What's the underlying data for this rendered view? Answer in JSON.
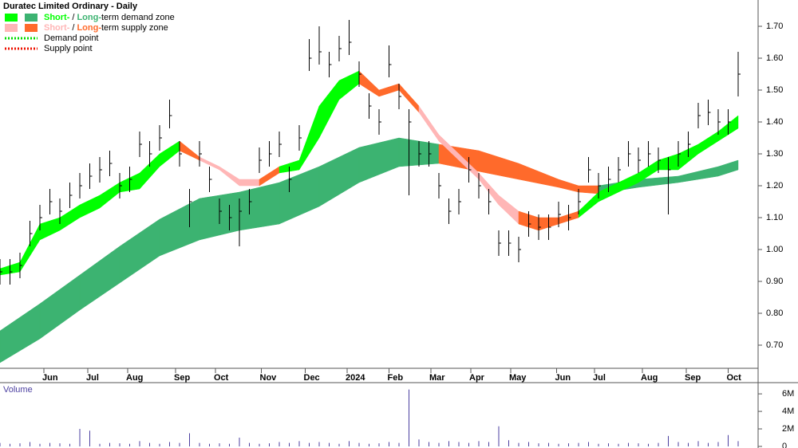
{
  "chart_data": [
    {
      "type": "ohlc",
      "title": "Duratec Limited Ordinary - Daily",
      "x": [
        0,
        5,
        10,
        15,
        20,
        25,
        30,
        35,
        40,
        45,
        50,
        55,
        60,
        65,
        70,
        75,
        80,
        85,
        90,
        95,
        100,
        105,
        110,
        115,
        120,
        125,
        130,
        135,
        140,
        145,
        150,
        155,
        160,
        165,
        170,
        175,
        180,
        185,
        190,
        195,
        200,
        205,
        210,
        215,
        220,
        225,
        230,
        235,
        240,
        245,
        250,
        255,
        260,
        265,
        270,
        275,
        280,
        285,
        290,
        295,
        300,
        305,
        310,
        315,
        320,
        325,
        330,
        335,
        340,
        345,
        350,
        355,
        360,
        365,
        370
      ],
      "high": [
        0.97,
        0.97,
        0.99,
        1.09,
        1.14,
        1.19,
        1.16,
        1.21,
        1.24,
        1.27,
        1.29,
        1.31,
        1.24,
        1.26,
        1.37,
        1.34,
        1.39,
        1.47,
        1.34,
        1.19,
        1.34,
        1.26,
        1.16,
        1.14,
        1.16,
        1.19,
        1.32,
        1.34,
        1.37,
        1.26,
        1.39,
        1.66,
        1.7,
        1.62,
        1.67,
        1.72,
        1.59,
        1.49,
        1.44,
        1.64,
        1.52,
        1.44,
        1.34,
        1.34,
        1.24,
        1.16,
        1.19,
        1.29,
        1.24,
        1.19,
        1.06,
        1.06,
        1.04,
        1.12,
        1.11,
        1.11,
        1.15,
        1.14,
        1.19,
        1.29,
        1.24,
        1.26,
        1.29,
        1.34,
        1.32,
        1.34,
        1.32,
        1.29,
        1.34,
        1.37,
        1.46,
        1.47,
        1.44,
        1.44,
        1.62
      ],
      "low": [
        0.89,
        0.89,
        0.91,
        1.01,
        1.06,
        1.11,
        1.08,
        1.13,
        1.16,
        1.19,
        1.21,
        1.23,
        1.16,
        1.18,
        1.29,
        1.26,
        1.31,
        1.38,
        1.26,
        1.07,
        1.26,
        1.18,
        1.08,
        1.06,
        1.01,
        1.11,
        1.24,
        1.26,
        1.29,
        1.18,
        1.31,
        1.56,
        1.58,
        1.54,
        1.59,
        1.61,
        1.51,
        1.41,
        1.36,
        1.54,
        1.44,
        1.17,
        1.26,
        1.26,
        1.16,
        1.08,
        1.11,
        1.21,
        1.16,
        1.11,
        0.98,
        0.98,
        0.96,
        1.04,
        1.03,
        1.03,
        1.07,
        1.06,
        1.11,
        1.21,
        1.16,
        1.18,
        1.21,
        1.26,
        1.24,
        1.26,
        1.24,
        1.11,
        1.26,
        1.29,
        1.38,
        1.39,
        1.36,
        1.36,
        1.48
      ],
      "close": [
        0.93,
        0.93,
        0.95,
        1.05,
        1.1,
        1.15,
        1.12,
        1.17,
        1.2,
        1.23,
        1.25,
        1.27,
        1.2,
        1.22,
        1.33,
        1.3,
        1.35,
        1.42,
        1.3,
        1.15,
        1.3,
        1.22,
        1.12,
        1.1,
        1.12,
        1.15,
        1.28,
        1.3,
        1.33,
        1.22,
        1.35,
        1.6,
        1.62,
        1.58,
        1.63,
        1.65,
        1.55,
        1.45,
        1.4,
        1.58,
        1.48,
        1.4,
        1.3,
        1.3,
        1.2,
        1.12,
        1.15,
        1.25,
        1.2,
        1.15,
        1.02,
        1.02,
        1.0,
        1.08,
        1.07,
        1.07,
        1.11,
        1.1,
        1.15,
        1.25,
        1.2,
        1.22,
        1.25,
        1.3,
        1.28,
        1.3,
        1.28,
        1.25,
        1.3,
        1.33,
        1.42,
        1.43,
        1.4,
        1.4,
        1.55
      ],
      "color": "#000000",
      "long_term_zone": {
        "x": [
          0,
          20,
          40,
          60,
          80,
          100,
          120,
          140,
          160,
          180,
          200,
          220,
          240,
          260,
          280,
          290,
          300,
          320,
          340,
          360,
          370
        ],
        "upper": [
          0.745,
          0.83,
          0.92,
          1.01,
          1.095,
          1.16,
          1.18,
          1.21,
          1.26,
          1.32,
          1.35,
          1.33,
          1.31,
          1.27,
          1.22,
          1.2,
          1.2,
          1.22,
          1.23,
          1.26,
          1.28
        ],
        "lower": [
          0.645,
          0.72,
          0.81,
          0.895,
          0.98,
          1.03,
          1.06,
          1.08,
          1.135,
          1.21,
          1.26,
          1.27,
          1.245,
          1.22,
          1.195,
          1.18,
          1.175,
          1.195,
          1.21,
          1.23,
          1.25
        ],
        "colors": [
          "#3cb371",
          "#3cb371",
          "#3cb371",
          "#3cb371",
          "#3cb371",
          "#3cb371",
          "#3cb371",
          "#3cb371",
          "#3cb371",
          "#3cb371",
          "#3cb371",
          "#ff6a2b",
          "#ff6a2b",
          "#ff6a2b",
          "#ff6a2b",
          "#ff6a2b",
          "#3cb371",
          "#3cb371",
          "#3cb371",
          "#3cb371",
          "#3cb371"
        ]
      },
      "short_term_zone": {
        "x": [
          0,
          10,
          20,
          30,
          40,
          50,
          60,
          70,
          80,
          90,
          100,
          110,
          120,
          130,
          140,
          150,
          160,
          170,
          180,
          190,
          200,
          210,
          220,
          230,
          240,
          250,
          260,
          270,
          280,
          290,
          300,
          310,
          320,
          330,
          340,
          350,
          360,
          370
        ],
        "upper": [
          0.94,
          0.96,
          1.08,
          1.1,
          1.14,
          1.17,
          1.21,
          1.24,
          1.3,
          1.34,
          1.29,
          1.26,
          1.22,
          1.22,
          1.26,
          1.28,
          1.45,
          1.53,
          1.56,
          1.5,
          1.52,
          1.45,
          1.36,
          1.3,
          1.24,
          1.17,
          1.12,
          1.1,
          1.1,
          1.12,
          1.18,
          1.21,
          1.24,
          1.28,
          1.3,
          1.33,
          1.37,
          1.42
        ],
        "lower": [
          0.92,
          0.93,
          1.03,
          1.06,
          1.1,
          1.13,
          1.18,
          1.19,
          1.26,
          1.31,
          1.28,
          1.25,
          1.2,
          1.2,
          1.24,
          1.25,
          1.35,
          1.47,
          1.52,
          1.48,
          1.5,
          1.43,
          1.34,
          1.28,
          1.22,
          1.14,
          1.08,
          1.06,
          1.08,
          1.1,
          1.15,
          1.18,
          1.21,
          1.25,
          1.25,
          1.3,
          1.34,
          1.38
        ],
        "colors": [
          "#00ff00",
          "#00ff00",
          "#00ff00",
          "#00ff00",
          "#00ff00",
          "#00ff00",
          "#00ff00",
          "#00ff00",
          "#00ff00",
          "#ff6a2b",
          "#ffb6b6",
          "#ffb6b6",
          "#ffb6b6",
          "#ff6a2b",
          "#00ff00",
          "#00ff00",
          "#00ff00",
          "#00ff00",
          "#ff6a2b",
          "#ff6a2b",
          "#ff6a2b",
          "#ffb6b6",
          "#ffb6b6",
          "#ffb6b6",
          "#ffb6b6",
          "#ffb6b6",
          "#ff6a2b",
          "#ff6a2b",
          "#ff6a2b",
          "#00ff00",
          "#00ff00",
          "#00ff00",
          "#00ff00",
          "#00ff00",
          "#00ff00",
          "#00ff00",
          "#00ff00",
          "#00ff00"
        ]
      },
      "legend": [
        {
          "short": "Short-",
          "sep": "/",
          "long": "Long-",
          "label": "term demand zone",
          "colors": [
            "#00ff00",
            "#3cb371"
          ]
        },
        {
          "short": "Short-",
          "sep": "/",
          "long": "Long-",
          "label": "term supply zone",
          "colors": [
            "#ffb6b6",
            "#ff6a2b"
          ]
        },
        {
          "label": "Demand point",
          "color": "#00dd00"
        },
        {
          "label": "Supply point",
          "color": "#ee1100"
        }
      ],
      "xlim": [
        0,
        380
      ],
      "ylim": [
        0.6275,
        1.7825
      ],
      "yticks": [
        {
          "value": 0.7,
          "label": "0.70"
        },
        {
          "value": 0.8,
          "label": "0.80"
        },
        {
          "value": 0.9,
          "label": "0.90"
        },
        {
          "value": 1.0,
          "label": "1.00"
        },
        {
          "value": 1.1,
          "label": "1.10"
        },
        {
          "value": 1.2,
          "label": "1.20"
        },
        {
          "value": 1.3,
          "label": "1.30"
        },
        {
          "value": 1.4,
          "label": "1.40"
        },
        {
          "value": 1.5,
          "label": "1.50"
        },
        {
          "value": 1.6,
          "label": "1.60"
        },
        {
          "value": 1.7,
          "label": "1.70"
        }
      ],
      "xticks": [
        {
          "value": 22,
          "label": "Jun"
        },
        {
          "value": 44,
          "label": "Jul"
        },
        {
          "value": 64,
          "label": "Aug"
        },
        {
          "value": 88,
          "label": "Sep"
        },
        {
          "value": 108,
          "label": "Oct"
        },
        {
          "value": 131,
          "label": "Nov"
        },
        {
          "value": 153,
          "label": "Dec"
        },
        {
          "value": 174,
          "label": "2024"
        },
        {
          "value": 195,
          "label": "Feb"
        },
        {
          "value": 216,
          "label": "Mar"
        },
        {
          "value": 236,
          "label": "Apr"
        },
        {
          "value": 256,
          "label": "May"
        },
        {
          "value": 279,
          "label": "Jun"
        },
        {
          "value": 298,
          "label": "Jul"
        },
        {
          "value": 322,
          "label": "Aug"
        },
        {
          "value": 344,
          "label": "Sep"
        },
        {
          "value": 365,
          "label": "Oct"
        }
      ]
    },
    {
      "type": "bar",
      "title": "Volume",
      "color": "#4b3fa0",
      "x": [
        0,
        5,
        10,
        15,
        20,
        25,
        30,
        35,
        40,
        45,
        50,
        55,
        60,
        65,
        70,
        75,
        80,
        85,
        90,
        95,
        100,
        105,
        110,
        115,
        120,
        125,
        130,
        135,
        140,
        145,
        150,
        155,
        160,
        165,
        170,
        175,
        180,
        185,
        190,
        195,
        200,
        205,
        210,
        215,
        220,
        225,
        230,
        235,
        240,
        245,
        250,
        255,
        260,
        265,
        270,
        275,
        280,
        285,
        290,
        295,
        300,
        305,
        310,
        315,
        320,
        325,
        330,
        335,
        340,
        345,
        350,
        355,
        360,
        365,
        370
      ],
      "values": [
        400000,
        300000,
        350000,
        500000,
        300000,
        400000,
        350000,
        300000,
        2000000,
        1800000,
        300000,
        400000,
        350000,
        300000,
        600000,
        400000,
        300000,
        500000,
        400000,
        1500000,
        400000,
        300000,
        350000,
        300000,
        1000000,
        400000,
        300000,
        350000,
        500000,
        400000,
        600000,
        400000,
        500000,
        400000,
        300000,
        600000,
        400000,
        300000,
        350000,
        500000,
        400000,
        6500000,
        800000,
        500000,
        400000,
        600000,
        500000,
        400000,
        600000,
        500000,
        2300000,
        700000,
        400000,
        500000,
        350000,
        400000,
        300000,
        350000,
        400000,
        500000,
        300000,
        350000,
        300000,
        400000,
        350000,
        300000,
        400000,
        1200000,
        500000,
        400000,
        600000,
        400000,
        500000,
        1300000,
        600000
      ],
      "xlim": [
        0,
        380
      ],
      "ylim": [
        0,
        7100000
      ],
      "yticks": [
        0,
        {
          "value": 2000000,
          "label": "2M"
        },
        {
          "value": 4000000,
          "label": "4M"
        },
        {
          "value": 6000000,
          "label": "6M"
        }
      ]
    }
  ]
}
